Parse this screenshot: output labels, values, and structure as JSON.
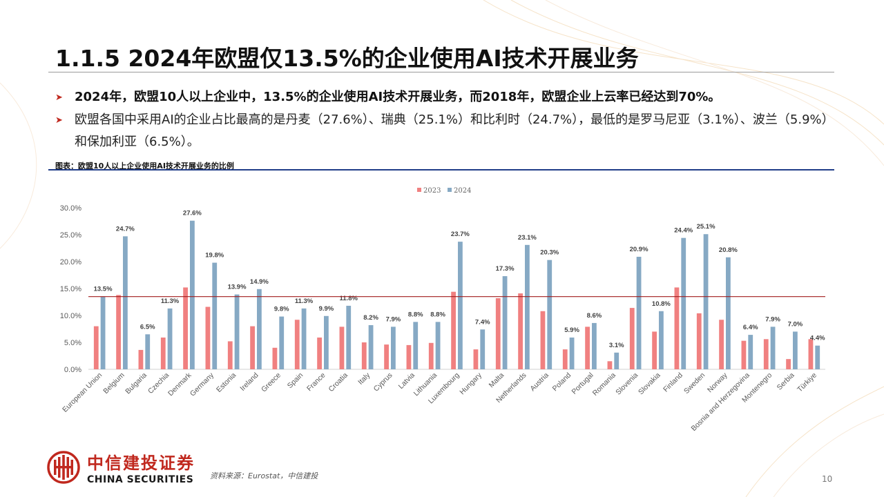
{
  "title": "1.1.5 2024年欧盟仅13.5%的企业使用AI技术开展业务",
  "bullets": [
    "2024年，欧盟10人以上企业中，13.5%的企业使用AI技术开展业务，而2018年，欧盟企业上云率已经达到70%。",
    "欧盟各国中采用AI的企业占比最高的是丹麦（27.6%）、瑞典（25.1%）和比利时（24.7%），最低的是罗马尼亚（3.1%）、波兰（5.9%）和保加利亚（6.5%）。"
  ],
  "bullet_icon": "triangle-right-icon",
  "figure_title": "图表：欧盟10人以上企业使用AI技术开展业务的比例",
  "source": "资料来源：Eurostat，中信建投",
  "page_number": "10",
  "logo": {
    "cn": "中信建投证券",
    "en": "CHINA SECURITIES",
    "icon": "citic-emblem-icon"
  },
  "colors": {
    "series_2023": "#f08080",
    "series_2024": "#86a9c4",
    "ref_line": "#a11a1a",
    "accent": "#c0281e",
    "rule": "#1f3c88"
  },
  "chart_data": {
    "type": "bar",
    "title": "",
    "xlabel": "",
    "ylabel": "",
    "ylim": [
      0,
      30
    ],
    "yticks": [
      "0.0%",
      "5.0%",
      "10.0%",
      "15.0%",
      "20.0%",
      "25.0%",
      "30.0%"
    ],
    "ytick_values": [
      0,
      5,
      10,
      15,
      20,
      25,
      30
    ],
    "legend_position": "top-center",
    "grid": false,
    "reference_line": 13.5,
    "categories": [
      "European Union",
      "Belgium",
      "Bulgaria",
      "Czechia",
      "Denmark",
      "Germany",
      "Estonia",
      "Ireland",
      "Greece",
      "Spain",
      "France",
      "Croatia",
      "Italy",
      "Cyprus",
      "Latvia",
      "Lithuania",
      "Luxembourg",
      "Hungary",
      "Malta",
      "Netherlands",
      "Austria",
      "Poland",
      "Portugal",
      "Romania",
      "Slovenia",
      "Slovakia",
      "Finland",
      "Sweden",
      "Norway",
      "Bosnia and Herzegovina",
      "Montenegro",
      "Serbia",
      "Türkiye"
    ],
    "series": [
      {
        "name": "2023",
        "values": [
          8.0,
          13.8,
          3.6,
          5.9,
          15.2,
          11.6,
          5.2,
          8.0,
          4.0,
          9.2,
          5.9,
          7.9,
          5.0,
          4.6,
          4.5,
          4.9,
          14.4,
          3.7,
          13.2,
          14.1,
          10.8,
          3.7,
          7.9,
          1.5,
          11.4,
          7.0,
          15.2,
          10.4,
          9.2,
          5.3,
          5.6,
          1.9,
          5.6
        ],
        "labels": []
      },
      {
        "name": "2024",
        "values": [
          13.5,
          24.7,
          6.5,
          11.3,
          27.6,
          19.8,
          13.9,
          14.9,
          9.8,
          11.3,
          9.9,
          11.8,
          8.2,
          7.9,
          8.8,
          8.8,
          23.7,
          7.4,
          17.3,
          23.1,
          20.3,
          5.9,
          8.6,
          3.1,
          20.9,
          10.8,
          24.4,
          25.1,
          20.8,
          6.4,
          7.9,
          7.0,
          4.4
        ],
        "labels": [
          "13.5%",
          "24.7%",
          "6.5%",
          "11.3%",
          "27.6%",
          "19.8%",
          "13.9%",
          "14.9%",
          "9.8%",
          "11.3%",
          "9.9%",
          "11.8%",
          "8.2%",
          "7.9%",
          "8.8%",
          "8.8%",
          "23.7%",
          "7.4%",
          "17.3%",
          "23.1%",
          "20.3%",
          "5.9%",
          "8.6%",
          "3.1%",
          "20.9%",
          "10.8%",
          "24.4%",
          "25.1%",
          "20.8%",
          "6.4%",
          "7.9%",
          "7.0%",
          "4.4%"
        ]
      }
    ]
  }
}
